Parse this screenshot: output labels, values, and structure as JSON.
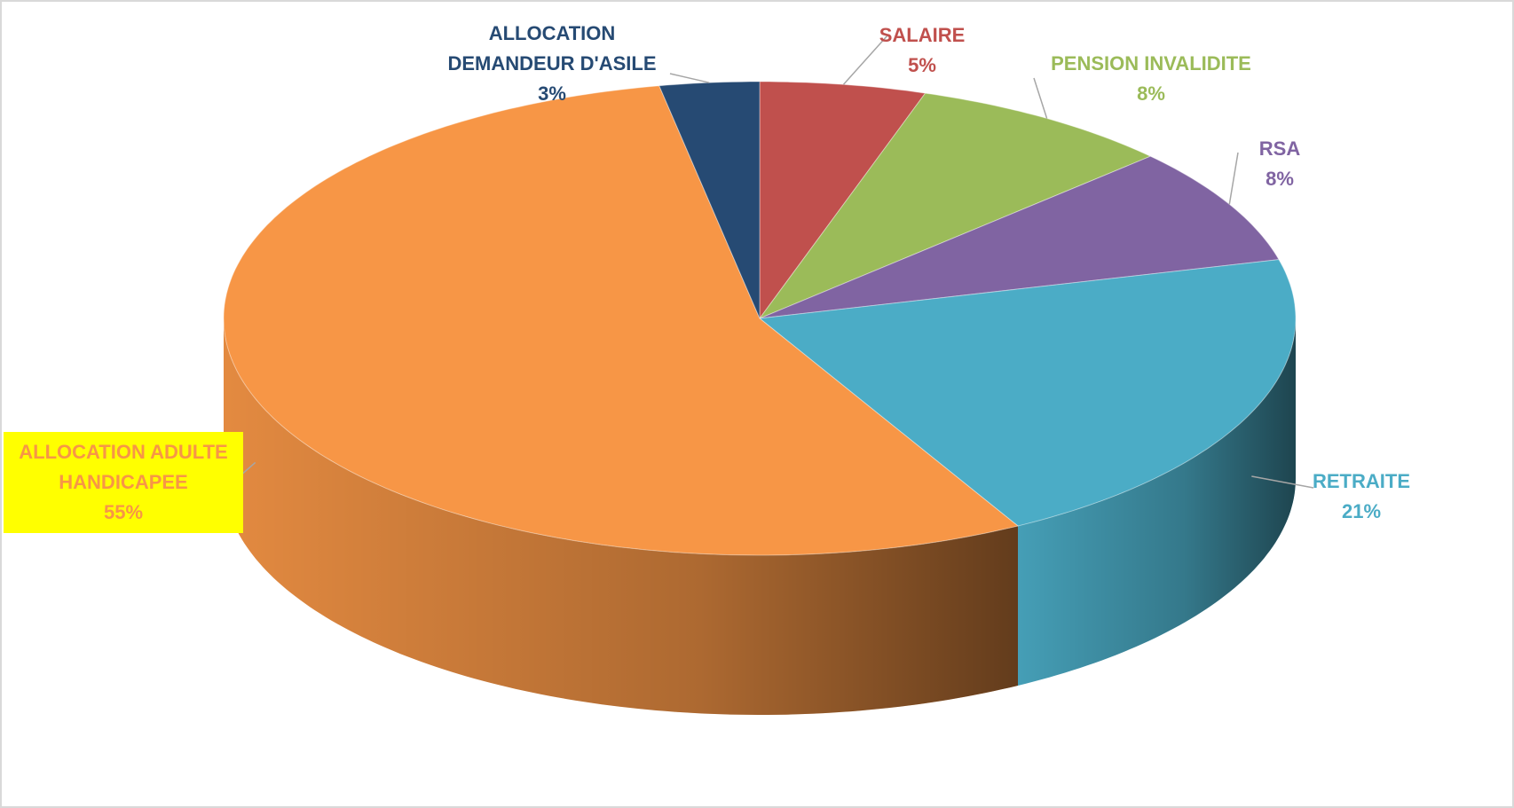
{
  "chart_data": {
    "type": "pie",
    "categories": [
      "SALAIRE",
      "PENSION INVALIDITE",
      "RSA",
      "RETRAITE",
      "ALLOCATION ADULTE HANDICAPEE",
      "ALLOCATION DEMANDEUR D'ASILE"
    ],
    "values": [
      5,
      8,
      8,
      21,
      55,
      3
    ],
    "value_labels": [
      "5%",
      "8%",
      "8%",
      "21%",
      "55%",
      "3%"
    ],
    "colors": [
      "#c0504d",
      "#9bbb59",
      "#8064a2",
      "#4bacc6",
      "#f79646",
      "#264a73"
    ],
    "label_colors": [
      "#c0504d",
      "#9bbb59",
      "#8064a2",
      "#4bacc6",
      "#f79646",
      "#264a73"
    ],
    "highlight": {
      "category": 4,
      "background": "#ffff00"
    }
  }
}
